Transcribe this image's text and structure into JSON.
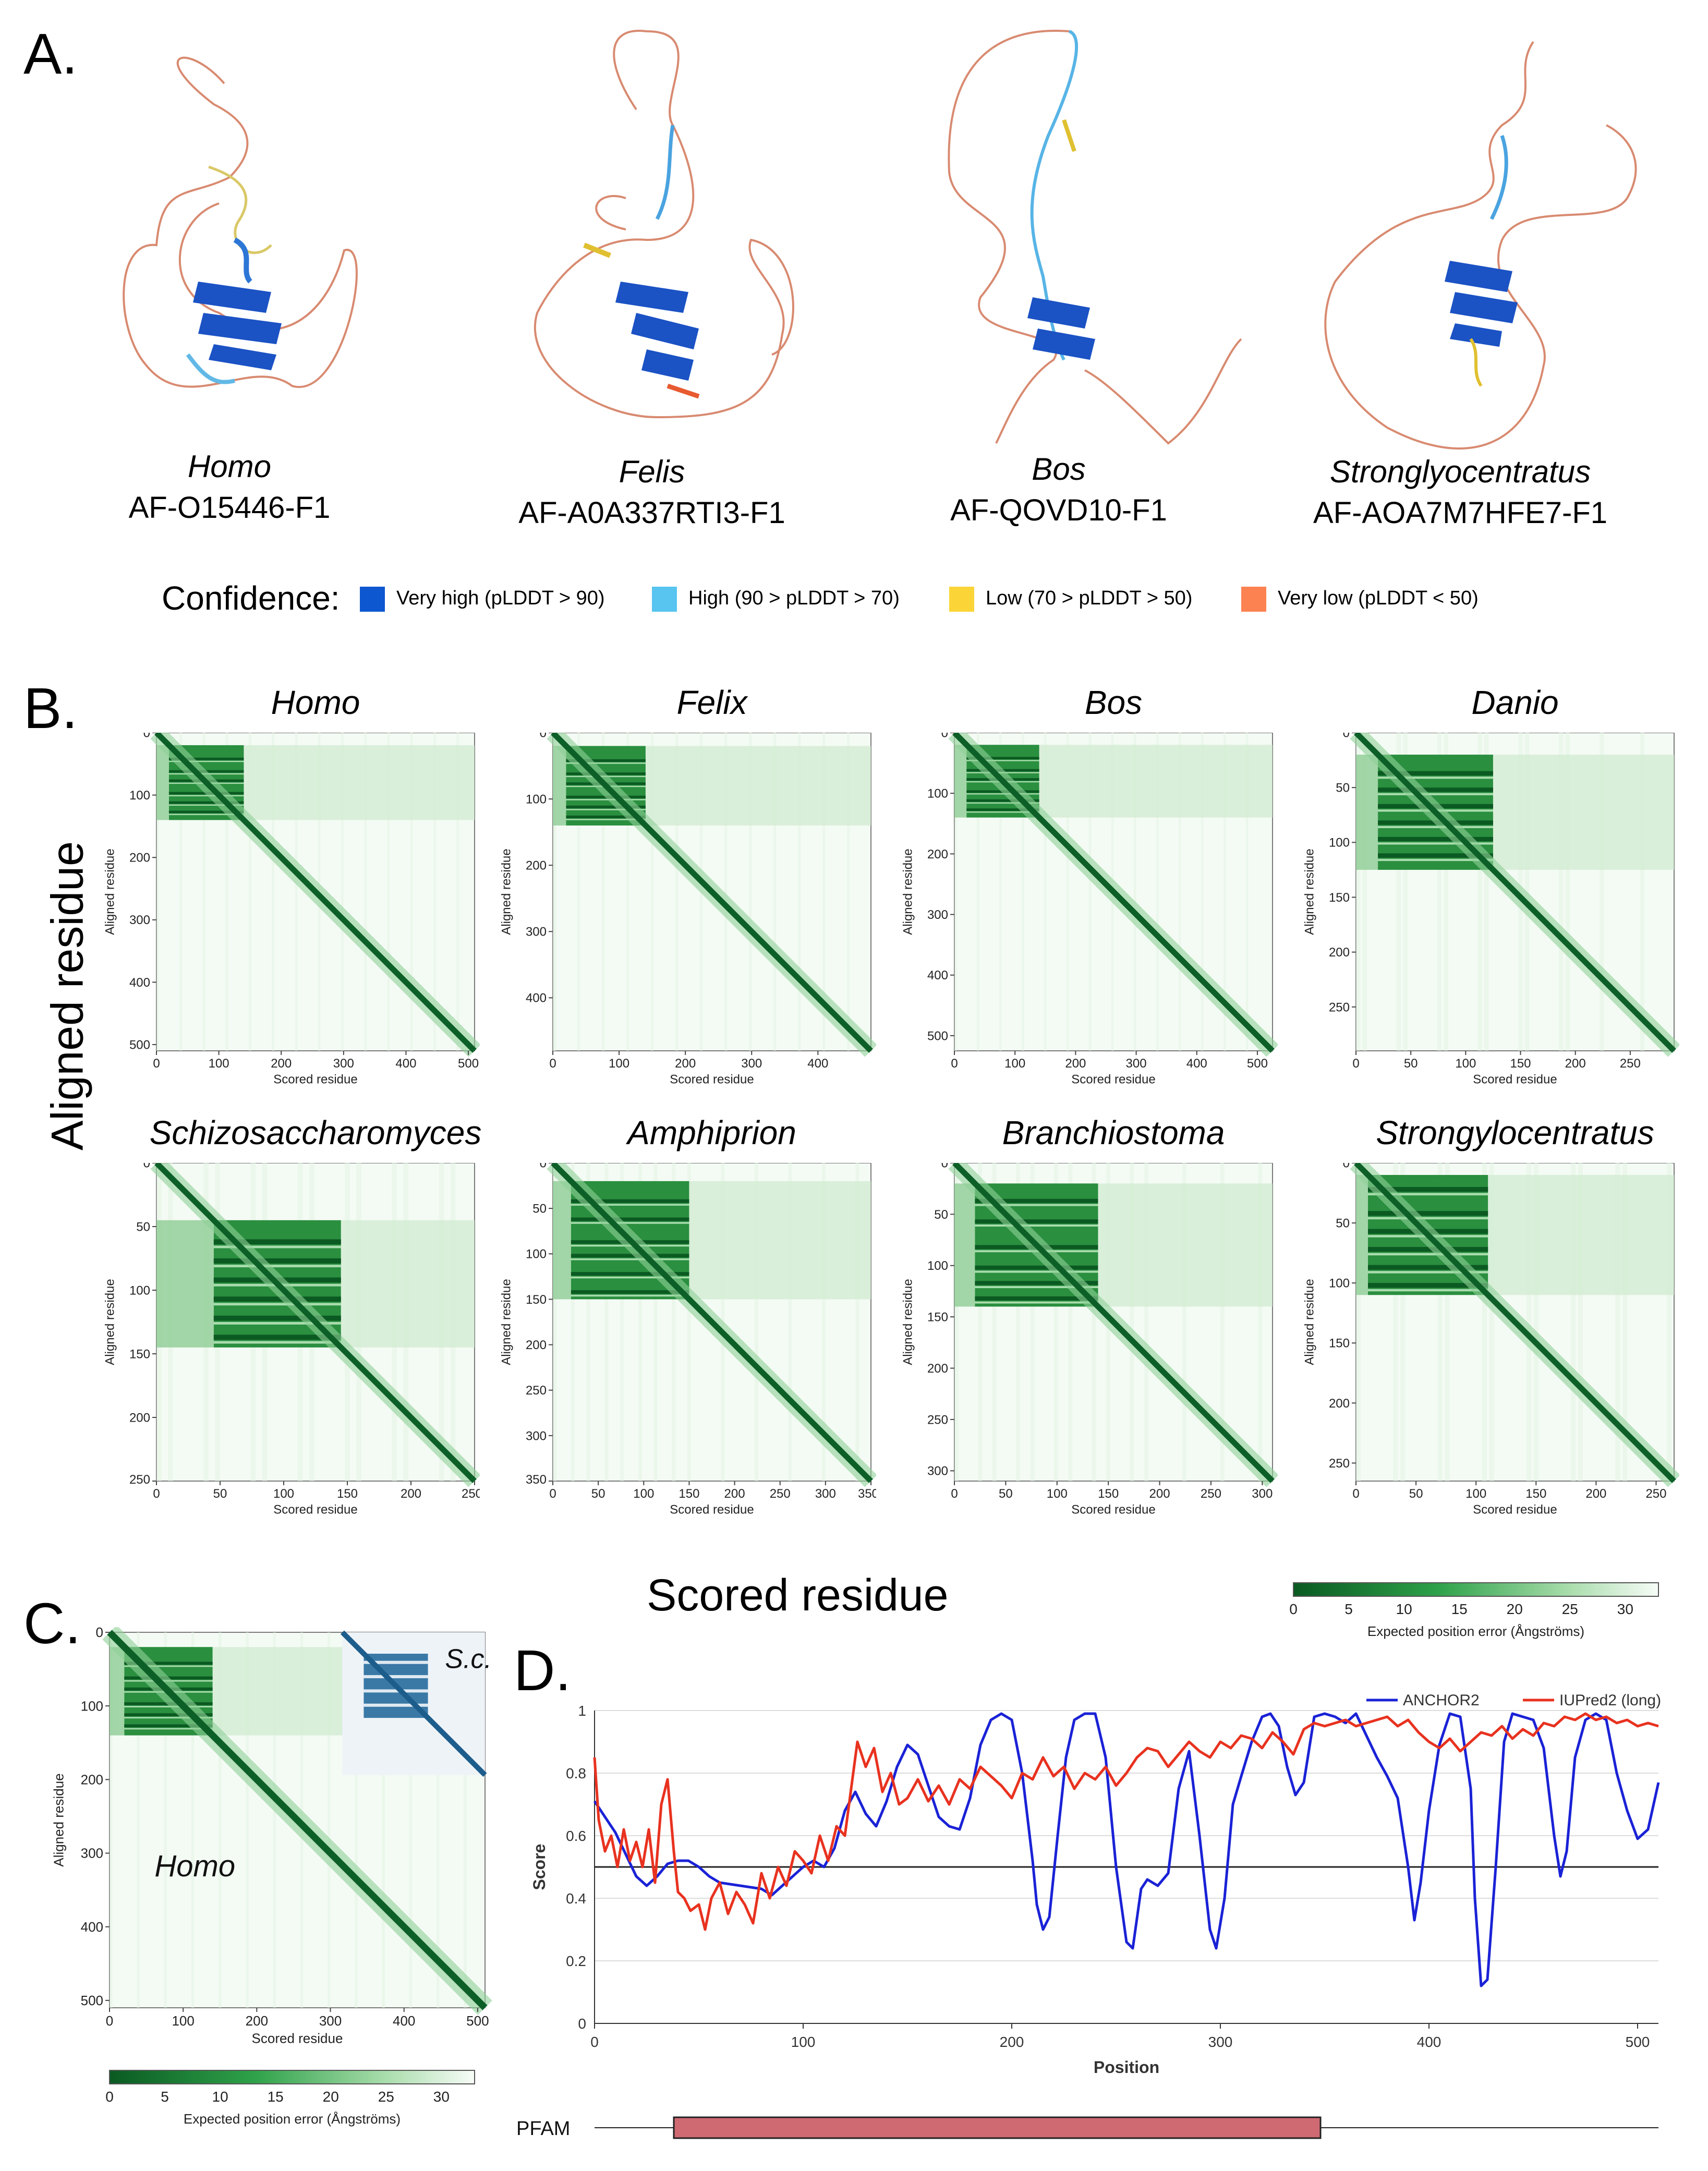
{
  "panels": {
    "a": "A.",
    "b": "B.",
    "c": "C.",
    "d": "D."
  },
  "structures": [
    {
      "species": "Homo",
      "accession": "AF-O15446-F1"
    },
    {
      "species": "Felis",
      "accession": "AF-A0A337RTI3-F1"
    },
    {
      "species": "Bos",
      "accession": "AF-QOVD10-F1"
    },
    {
      "species": "Stronglyocentratus",
      "accession": "AF-AOA7M7HFE7-F1"
    }
  ],
  "confidence": {
    "label": "Confidence:",
    "items": [
      {
        "label": "Very high (pLDDT > 90)",
        "color": "#0d57d1"
      },
      {
        "label": "High (90 > pLDDT > 70)",
        "color": "#58c4f0"
      },
      {
        "label": "Low (70 > pLDDT > 50)",
        "color": "#fbd538"
      },
      {
        "label": "Very low (pLDDT < 50)",
        "color": "#fc8251"
      }
    ]
  },
  "pae_maps": [
    {
      "title": "Homo",
      "n": 510,
      "domain": [
        20,
        140
      ],
      "bands": [
        40,
        60,
        75,
        95,
        110,
        125
      ],
      "ticks": [
        0,
        100,
        200,
        300,
        400,
        500
      ],
      "tick_labels": [
        "0",
        "100",
        "200",
        "300",
        "400",
        "500"
      ]
    },
    {
      "title": "Felix",
      "n": 480,
      "domain": [
        20,
        140
      ],
      "bands": [
        40,
        60,
        75,
        95,
        110,
        125
      ],
      "ticks": [
        0,
        100,
        200,
        300,
        400
      ],
      "tick_labels": [
        "0",
        "100",
        "200",
        "300",
        "400"
      ]
    },
    {
      "title": "Bos",
      "n": 525,
      "domain": [
        20,
        140
      ],
      "bands": [
        40,
        60,
        75,
        95,
        110,
        125
      ],
      "ticks": [
        0,
        100,
        200,
        300,
        400,
        500
      ],
      "tick_labels": [
        "0",
        "100",
        "200",
        "300",
        "400",
        "500"
      ]
    },
    {
      "title": "Danio",
      "n": 290,
      "domain": [
        20,
        125
      ],
      "bands": [
        35,
        50,
        65,
        80,
        95,
        110
      ],
      "ticks": [
        0,
        50,
        100,
        150,
        200,
        250
      ],
      "tick_labels": [
        "0",
        "50",
        "100",
        "150",
        "200",
        "250"
      ]
    },
    {
      "title": "Schizosaccharomyces",
      "n": 250,
      "domain": [
        45,
        145
      ],
      "bands": [
        60,
        75,
        90,
        105,
        120,
        135
      ],
      "ticks": [
        0,
        50,
        100,
        150,
        200,
        250
      ],
      "tick_labels": [
        "0",
        "50",
        "100",
        "150",
        "200",
        "250"
      ]
    },
    {
      "title": "Amphiprion",
      "n": 350,
      "domain": [
        20,
        150
      ],
      "bands": [
        40,
        60,
        85,
        100,
        120,
        140
      ],
      "ticks": [
        0,
        50,
        100,
        150,
        200,
        250,
        300,
        350
      ],
      "tick_labels": [
        "0",
        "50",
        "100",
        "150",
        "200",
        "250",
        "300",
        "350"
      ]
    },
    {
      "title": "Branchiostoma",
      "n": 310,
      "domain": [
        20,
        140
      ],
      "bands": [
        35,
        55,
        80,
        100,
        115,
        130
      ],
      "ticks": [
        0,
        50,
        100,
        150,
        200,
        250,
        300
      ],
      "tick_labels": [
        "0",
        "50",
        "100",
        "150",
        "200",
        "250",
        "300"
      ]
    },
    {
      "title": "Strongylocentratus",
      "n": 265,
      "domain": [
        10,
        110
      ],
      "bands": [
        20,
        40,
        55,
        70,
        85,
        100
      ],
      "ticks": [
        0,
        50,
        100,
        150,
        200,
        250
      ],
      "tick_labels": [
        "0",
        "50",
        "100",
        "150",
        "200",
        "250"
      ]
    }
  ],
  "axis_labels": {
    "aligned": "Aligned residue",
    "scored": "Scored residue",
    "aligned_big": "Aligned residue",
    "scored_big": "Scored residue"
  },
  "colorbar": {
    "ticks": [
      0,
      5,
      10,
      15,
      20,
      25,
      30
    ],
    "tick_labels": [
      "0",
      "5",
      "10",
      "15",
      "20",
      "25",
      "30"
    ],
    "label": "Expected position error (Ångströms)"
  },
  "panel_c": {
    "overlay_label": "Homo",
    "inset_label": "S.c."
  },
  "chart_data": {
    "type": "line",
    "title": "",
    "xlabel": "Position",
    "ylabel": "Score",
    "xlim": [
      0,
      510
    ],
    "ylim": [
      0,
      1
    ],
    "x_ticks": [
      0,
      100,
      200,
      300,
      400,
      500
    ],
    "y_ticks": [
      0,
      0.2,
      0.4,
      0.6,
      0.8,
      1
    ],
    "y_tick_labels": [
      "0",
      "0.2",
      "0.4",
      "0.6",
      "0.8",
      "1"
    ],
    "threshold": 0.5,
    "series": [
      {
        "name": "ANCHOR2",
        "color": "#1a22d6",
        "x": [
          0,
          5,
          10,
          15,
          20,
          25,
          30,
          35,
          40,
          45,
          50,
          55,
          60,
          70,
          80,
          85,
          90,
          95,
          100,
          105,
          110,
          115,
          120,
          125,
          130,
          135,
          140,
          145,
          150,
          155,
          160,
          165,
          170,
          175,
          180,
          185,
          190,
          195,
          200,
          205,
          210,
          212,
          215,
          218,
          222,
          226,
          230,
          235,
          240,
          245,
          250,
          255,
          258,
          262,
          265,
          270,
          275,
          280,
          285,
          290,
          295,
          298,
          302,
          306,
          310,
          315,
          320,
          324,
          328,
          332,
          336,
          340,
          345,
          350,
          355,
          360,
          365,
          370,
          375,
          380,
          385,
          390,
          393,
          396,
          400,
          405,
          410,
          415,
          420,
          422,
          425,
          428,
          432,
          436,
          440,
          445,
          450,
          455,
          460,
          463,
          466,
          470,
          475,
          480,
          485,
          490,
          495,
          500,
          505,
          510
        ],
        "y": [
          0.71,
          0.66,
          0.61,
          0.54,
          0.47,
          0.44,
          0.47,
          0.51,
          0.52,
          0.52,
          0.5,
          0.47,
          0.45,
          0.44,
          0.43,
          0.41,
          0.44,
          0.47,
          0.5,
          0.52,
          0.5,
          0.56,
          0.68,
          0.74,
          0.67,
          0.63,
          0.71,
          0.82,
          0.89,
          0.86,
          0.76,
          0.66,
          0.63,
          0.62,
          0.72,
          0.89,
          0.97,
          0.99,
          0.97,
          0.8,
          0.52,
          0.38,
          0.3,
          0.34,
          0.6,
          0.85,
          0.97,
          0.99,
          0.99,
          0.85,
          0.5,
          0.26,
          0.24,
          0.43,
          0.46,
          0.44,
          0.48,
          0.75,
          0.87,
          0.6,
          0.3,
          0.24,
          0.4,
          0.7,
          0.79,
          0.9,
          0.98,
          0.99,
          0.95,
          0.82,
          0.73,
          0.77,
          0.98,
          0.99,
          0.98,
          0.96,
          0.99,
          0.92,
          0.85,
          0.79,
          0.72,
          0.5,
          0.33,
          0.45,
          0.68,
          0.89,
          0.99,
          0.98,
          0.75,
          0.4,
          0.12,
          0.14,
          0.5,
          0.9,
          0.99,
          0.98,
          0.97,
          0.88,
          0.6,
          0.47,
          0.55,
          0.85,
          0.97,
          0.99,
          0.97,
          0.8,
          0.68,
          0.59,
          0.62,
          0.77
        ]
      },
      {
        "name": "IUPred2 (long)",
        "color": "#e8321f",
        "x": [
          0,
          2,
          5,
          8,
          11,
          14,
          17,
          20,
          23,
          26,
          29,
          32,
          35,
          38,
          40,
          43,
          46,
          50,
          53,
          56,
          60,
          64,
          68,
          72,
          76,
          80,
          84,
          88,
          92,
          96,
          100,
          104,
          108,
          112,
          116,
          120,
          123,
          126,
          130,
          134,
          138,
          142,
          146,
          150,
          155,
          160,
          165,
          170,
          175,
          180,
          185,
          190,
          195,
          200,
          205,
          210,
          215,
          220,
          225,
          230,
          235,
          240,
          245,
          250,
          255,
          260,
          265,
          270,
          275,
          280,
          285,
          290,
          295,
          300,
          305,
          310,
          315,
          320,
          325,
          330,
          335,
          340,
          345,
          350,
          355,
          360,
          365,
          370,
          375,
          380,
          385,
          390,
          395,
          400,
          405,
          410,
          415,
          420,
          425,
          430,
          435,
          440,
          445,
          450,
          455,
          460,
          465,
          470,
          475,
          480,
          485,
          490,
          495,
          500,
          505,
          510
        ],
        "y": [
          0.85,
          0.65,
          0.55,
          0.6,
          0.5,
          0.62,
          0.52,
          0.58,
          0.5,
          0.62,
          0.45,
          0.7,
          0.78,
          0.55,
          0.42,
          0.4,
          0.36,
          0.38,
          0.3,
          0.4,
          0.45,
          0.35,
          0.42,
          0.38,
          0.32,
          0.48,
          0.4,
          0.5,
          0.44,
          0.55,
          0.52,
          0.48,
          0.6,
          0.52,
          0.63,
          0.6,
          0.75,
          0.9,
          0.82,
          0.88,
          0.74,
          0.8,
          0.7,
          0.72,
          0.78,
          0.71,
          0.76,
          0.7,
          0.78,
          0.75,
          0.82,
          0.79,
          0.76,
          0.72,
          0.8,
          0.78,
          0.85,
          0.79,
          0.82,
          0.75,
          0.8,
          0.78,
          0.82,
          0.76,
          0.8,
          0.85,
          0.88,
          0.87,
          0.82,
          0.86,
          0.9,
          0.87,
          0.85,
          0.9,
          0.88,
          0.92,
          0.91,
          0.88,
          0.93,
          0.9,
          0.86,
          0.94,
          0.96,
          0.95,
          0.96,
          0.97,
          0.95,
          0.96,
          0.97,
          0.98,
          0.95,
          0.97,
          0.93,
          0.9,
          0.88,
          0.91,
          0.87,
          0.9,
          0.93,
          0.92,
          0.95,
          0.91,
          0.94,
          0.92,
          0.96,
          0.95,
          0.98,
          0.97,
          0.99,
          0.97,
          0.98,
          0.96,
          0.97,
          0.95,
          0.96,
          0.95
        ]
      }
    ],
    "legend": [
      "ANCHOR2",
      "IUPred2 (long)"
    ],
    "pfam": {
      "label": "PFAM",
      "start": 38,
      "end": 348,
      "color": "#cf6a72"
    }
  }
}
